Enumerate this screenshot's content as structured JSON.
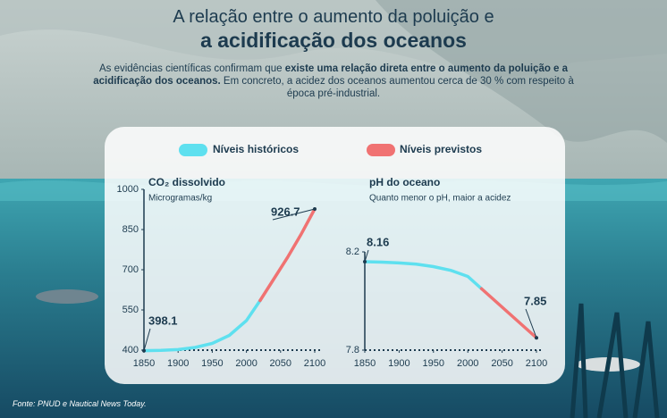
{
  "header": {
    "title_line_1": "A relação entre o aumento da poluição e",
    "title_line_2": "a acidificação dos oceanos",
    "description": [
      {
        "text": "As evidências científicas confirmam que ",
        "bold": false
      },
      {
        "text": "existe uma relação direta entre o aumento da poluição e a acidificação dos oceanos.",
        "bold": true
      },
      {
        "text": " Em concreto, a acidez dos oceanos aumentou cerca de 30 % com respeito à época pré-industrial.",
        "bold": false
      }
    ]
  },
  "source": "Fonte: PNUD e Nautical News Today.",
  "chart_data": [
    {
      "type": "line",
      "title": "CO₂ dissolvido",
      "subtitle": "Microgramas/kg",
      "x": [
        1850,
        1875,
        1900,
        1925,
        1950,
        1975,
        2000,
        2020,
        2040,
        2060,
        2080,
        2100
      ],
      "xlim": [
        1850,
        2100
      ],
      "xticks": [
        1850,
        1900,
        1950,
        2000,
        2050,
        2100
      ],
      "ylim": [
        400,
        1000
      ],
      "yticks": [
        400,
        550,
        700,
        850,
        1000
      ],
      "series": [
        {
          "name": "Níveis históricos",
          "color": "#5ee0ef",
          "values": [
            398.1,
            399,
            402,
            410,
            425,
            455,
            510,
            585,
            null,
            null,
            null,
            null
          ]
        },
        {
          "name": "Níveis previstos",
          "color": "#f07272",
          "values": [
            null,
            null,
            null,
            null,
            null,
            null,
            null,
            585,
            665,
            745,
            832,
            926.7
          ]
        }
      ]
    },
    {
      "type": "line",
      "title": "pH do oceano",
      "subtitle": "Quanto menor o pH, maior a acidez",
      "x": [
        1850,
        1875,
        1900,
        1925,
        1950,
        1975,
        2000,
        2020,
        2040,
        2060,
        2080,
        2100
      ],
      "xlim": [
        1850,
        2100
      ],
      "xticks": [
        1850,
        1900,
        1950,
        2000,
        2050,
        2100
      ],
      "ylim": [
        7.8,
        8.2
      ],
      "yticks": [
        7.8,
        8.2
      ],
      "series": [
        {
          "name": "Níveis históricos",
          "color": "#5ee0ef",
          "values": [
            8.16,
            8.158,
            8.155,
            8.15,
            8.14,
            8.125,
            8.1,
            8.05,
            null,
            null,
            null,
            null
          ]
        },
        {
          "name": "Níveis previstos",
          "color": "#f07272",
          "values": [
            null,
            null,
            null,
            null,
            null,
            null,
            null,
            8.05,
            8.0,
            7.95,
            7.9,
            7.85
          ]
        }
      ]
    }
  ]
}
